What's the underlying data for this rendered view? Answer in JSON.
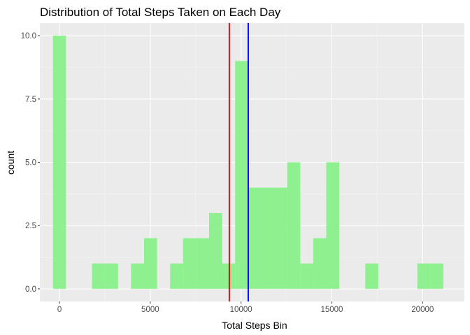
{
  "chart_data": {
    "type": "bar",
    "title": "Distribution of Total Steps Taken on Each Day",
    "xlabel": "Total Steps Bin",
    "ylabel": "count",
    "xlim": [
      -1080,
      22300
    ],
    "ylim": [
      -0.5,
      10.5
    ],
    "bin_width": 717,
    "bins": [
      {
        "center": 0,
        "count": 10
      },
      {
        "center": 2150,
        "count": 1
      },
      {
        "center": 2867,
        "count": 1
      },
      {
        "center": 4300,
        "count": 1
      },
      {
        "center": 5017,
        "count": 2
      },
      {
        "center": 6450,
        "count": 1
      },
      {
        "center": 7167,
        "count": 2
      },
      {
        "center": 7883,
        "count": 2
      },
      {
        "center": 8600,
        "count": 3
      },
      {
        "center": 9317,
        "count": 1
      },
      {
        "center": 10033,
        "count": 9
      },
      {
        "center": 10750,
        "count": 4
      },
      {
        "center": 11467,
        "count": 4
      },
      {
        "center": 12183,
        "count": 4
      },
      {
        "center": 12900,
        "count": 5
      },
      {
        "center": 13617,
        "count": 1
      },
      {
        "center": 14333,
        "count": 2
      },
      {
        "center": 15050,
        "count": 5
      },
      {
        "center": 17200,
        "count": 1
      },
      {
        "center": 20067,
        "count": 1
      },
      {
        "center": 20783,
        "count": 1
      }
    ],
    "xticks": [
      0,
      5000,
      10000,
      15000,
      20000
    ],
    "xtick_labels": [
      "0",
      "5000",
      "10000",
      "15000",
      "20000"
    ],
    "yticks": [
      0,
      2.5,
      5,
      7.5,
      10
    ],
    "ytick_labels": [
      "0.0",
      "2.5",
      "5.0",
      "7.5",
      "10.0"
    ],
    "vlines": [
      {
        "x": 9354,
        "color": "#ff0000"
      },
      {
        "x": 10395,
        "color": "#0000ff"
      }
    ],
    "grid": true,
    "colors": {
      "bar_fill": "#8ef08e",
      "panel_background": "#ebebeb",
      "grid_major": "#ffffff",
      "grid_minor": "#f5f5f5"
    }
  }
}
